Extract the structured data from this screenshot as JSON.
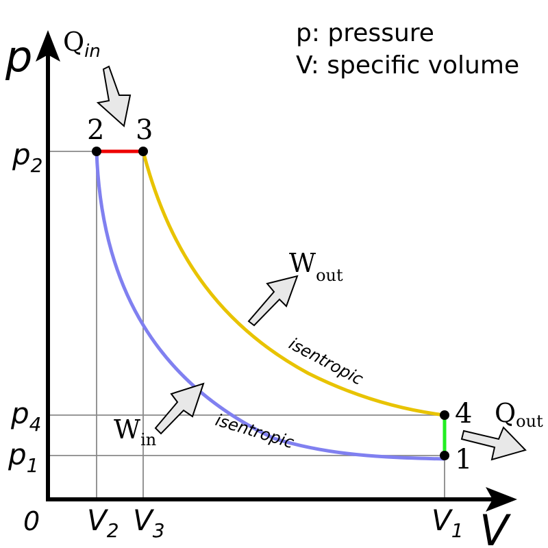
{
  "legend": {
    "line1": "p: pressure",
    "line2": "V: specific volume"
  },
  "axes": {
    "y_label": "p",
    "x_label": "V",
    "origin": "0"
  },
  "y_ticks": [
    {
      "base": "p",
      "sub": "2"
    },
    {
      "base": "p",
      "sub": "4"
    },
    {
      "base": "p",
      "sub": "1"
    }
  ],
  "x_ticks": [
    {
      "base": "V",
      "sub": "2"
    },
    {
      "base": "V",
      "sub": "3"
    },
    {
      "base": "V",
      "sub": "1"
    }
  ],
  "states": [
    "1",
    "2",
    "3",
    "4"
  ],
  "processes": {
    "isentropic_label": "isentropic",
    "compression_color": "#8080f0",
    "expansion_color": "#e8c300",
    "heat_addition_color": "#ee0000",
    "heat_rejection_color": "#22ee22"
  },
  "energy": {
    "q_in": {
      "base": "Q",
      "sub": "in"
    },
    "q_out": {
      "base": "Q",
      "sub": "out"
    },
    "w_in": {
      "base": "W",
      "sub": "in"
    },
    "w_out": {
      "base": "W",
      "sub": "out"
    },
    "arrow_fill": "#e8e8e8"
  }
}
